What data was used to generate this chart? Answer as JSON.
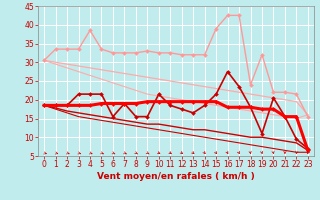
{
  "xlabel": "Vent moyen/en rafales ( km/h )",
  "xlim": [
    -0.5,
    23.5
  ],
  "ylim": [
    5,
    45
  ],
  "yticks": [
    5,
    10,
    15,
    20,
    25,
    30,
    35,
    40,
    45
  ],
  "xticks": [
    0,
    1,
    2,
    3,
    4,
    5,
    6,
    7,
    8,
    9,
    10,
    11,
    12,
    13,
    14,
    15,
    16,
    17,
    18,
    19,
    20,
    21,
    22,
    23
  ],
  "bg_color": "#c0eced",
  "grid_color": "#ffffff",
  "lines": [
    {
      "x": [
        0,
        1,
        2,
        3,
        4,
        5,
        6,
        7,
        8,
        9,
        10,
        11,
        12,
        13,
        14,
        15,
        16,
        17,
        18,
        19,
        20,
        21,
        22,
        23
      ],
      "y": [
        30.5,
        33.5,
        33.5,
        33.5,
        38.5,
        33.5,
        32.5,
        32.5,
        32.5,
        33.0,
        32.5,
        32.5,
        32.0,
        32.0,
        32.0,
        39.0,
        42.5,
        42.5,
        24.0,
        32.0,
        22.0,
        22.0,
        21.5,
        15.5
      ],
      "color": "#ff9999",
      "linewidth": 1.0,
      "marker": "D",
      "markersize": 2.0,
      "zorder": 3
    },
    {
      "x": [
        0,
        1,
        2,
        3,
        4,
        5,
        6,
        7,
        8,
        9,
        10,
        11,
        12,
        13,
        14,
        15,
        16,
        17,
        18,
        19,
        20,
        21,
        22,
        23
      ],
      "y": [
        30.5,
        30.0,
        29.5,
        29.0,
        28.5,
        28.0,
        27.5,
        27.0,
        26.5,
        26.0,
        25.5,
        25.0,
        24.5,
        24.0,
        23.5,
        23.0,
        22.5,
        22.0,
        21.5,
        21.0,
        20.5,
        20.0,
        19.5,
        16.0
      ],
      "color": "#ffaaaa",
      "linewidth": 0.9,
      "marker": null,
      "markersize": 0,
      "zorder": 2
    },
    {
      "x": [
        0,
        1,
        2,
        3,
        4,
        5,
        6,
        7,
        8,
        9,
        10,
        11,
        12,
        13,
        14,
        15,
        16,
        17,
        18,
        19,
        20,
        21,
        22,
        23
      ],
      "y": [
        30.5,
        29.5,
        28.5,
        27.5,
        26.5,
        25.5,
        24.5,
        23.5,
        22.5,
        21.5,
        21.0,
        20.5,
        20.0,
        19.5,
        19.0,
        18.5,
        18.0,
        17.5,
        17.0,
        16.5,
        16.0,
        15.5,
        15.0,
        16.0
      ],
      "color": "#ffaaaa",
      "linewidth": 0.8,
      "marker": null,
      "markersize": 0,
      "zorder": 2
    },
    {
      "x": [
        0,
        1,
        2,
        3,
        4,
        5,
        6,
        7,
        8,
        9,
        10,
        11,
        12,
        13,
        14,
        15,
        16,
        17,
        18,
        19,
        20,
        21,
        22,
        23
      ],
      "y": [
        18.5,
        18.5,
        18.5,
        21.5,
        21.5,
        21.5,
        15.5,
        19.0,
        15.5,
        15.5,
        21.5,
        18.5,
        17.5,
        16.5,
        18.5,
        21.5,
        27.5,
        23.5,
        18.0,
        11.0,
        20.5,
        15.5,
        9.5,
        7.0
      ],
      "color": "#cc0000",
      "linewidth": 1.2,
      "marker": "D",
      "markersize": 2.0,
      "zorder": 5
    },
    {
      "x": [
        0,
        1,
        2,
        3,
        4,
        5,
        6,
        7,
        8,
        9,
        10,
        11,
        12,
        13,
        14,
        15,
        16,
        17,
        18,
        19,
        20,
        21,
        22,
        23
      ],
      "y": [
        18.5,
        18.5,
        18.5,
        18.5,
        18.5,
        19.0,
        19.0,
        19.0,
        19.0,
        19.5,
        19.5,
        19.5,
        19.5,
        19.5,
        19.5,
        19.5,
        18.0,
        18.0,
        18.0,
        17.5,
        17.5,
        15.5,
        15.5,
        6.5
      ],
      "color": "#ff0000",
      "linewidth": 2.2,
      "marker": "D",
      "markersize": 2.0,
      "zorder": 6
    },
    {
      "x": [
        0,
        1,
        2,
        3,
        4,
        5,
        6,
        7,
        8,
        9,
        10,
        11,
        12,
        13,
        14,
        15,
        16,
        17,
        18,
        19,
        20,
        21,
        22,
        23
      ],
      "y": [
        18.5,
        17.8,
        17.0,
        16.5,
        16.0,
        15.5,
        15.0,
        14.5,
        14.0,
        13.5,
        13.5,
        13.0,
        12.5,
        12.0,
        12.0,
        11.5,
        11.0,
        10.5,
        10.0,
        10.0,
        9.5,
        9.0,
        8.5,
        6.5
      ],
      "color": "#cc0000",
      "linewidth": 1.0,
      "marker": null,
      "markersize": 0,
      "zorder": 4
    },
    {
      "x": [
        0,
        1,
        2,
        3,
        4,
        5,
        6,
        7,
        8,
        9,
        10,
        11,
        12,
        13,
        14,
        15,
        16,
        17,
        18,
        19,
        20,
        21,
        22,
        23
      ],
      "y": [
        18.5,
        17.5,
        16.5,
        15.5,
        15.0,
        14.5,
        14.0,
        13.5,
        13.0,
        12.5,
        12.0,
        11.5,
        11.0,
        10.5,
        10.0,
        9.5,
        9.0,
        8.5,
        8.0,
        7.5,
        7.0,
        6.5,
        6.0,
        6.0
      ],
      "color": "#cc0000",
      "linewidth": 0.8,
      "marker": null,
      "markersize": 0,
      "zorder": 4
    }
  ],
  "arrow_angles": [
    45,
    45,
    40,
    40,
    40,
    35,
    35,
    35,
    30,
    30,
    25,
    25,
    20,
    20,
    15,
    15,
    10,
    10,
    5,
    5,
    5,
    0,
    355,
    350
  ],
  "arrow_color": "#cc0000",
  "label_color": "#cc0000",
  "tick_color": "#cc0000",
  "xlabel_fontsize": 6.5,
  "tick_fontsize": 5.5
}
